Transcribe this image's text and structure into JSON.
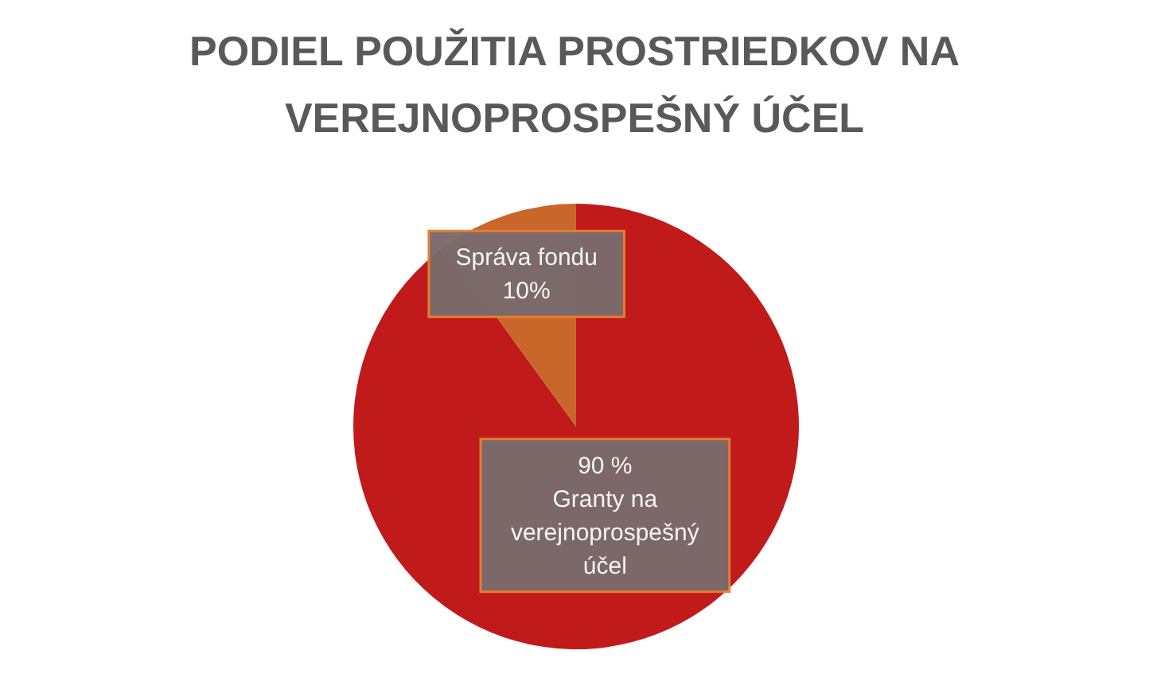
{
  "chart_data": {
    "type": "pie",
    "title": "PODIEL POUŽITIA PROSTRIEDKOV NA VEREJNOPROSPEŠNÝ ÚČEL",
    "categories": [
      "Granty na verejnoprospešný účel",
      "Správa fondu"
    ],
    "values": [
      90,
      10
    ],
    "colors": [
      "#c01a1b",
      "#c9662a"
    ],
    "value_labels": [
      "90 %",
      "10%"
    ]
  }
}
